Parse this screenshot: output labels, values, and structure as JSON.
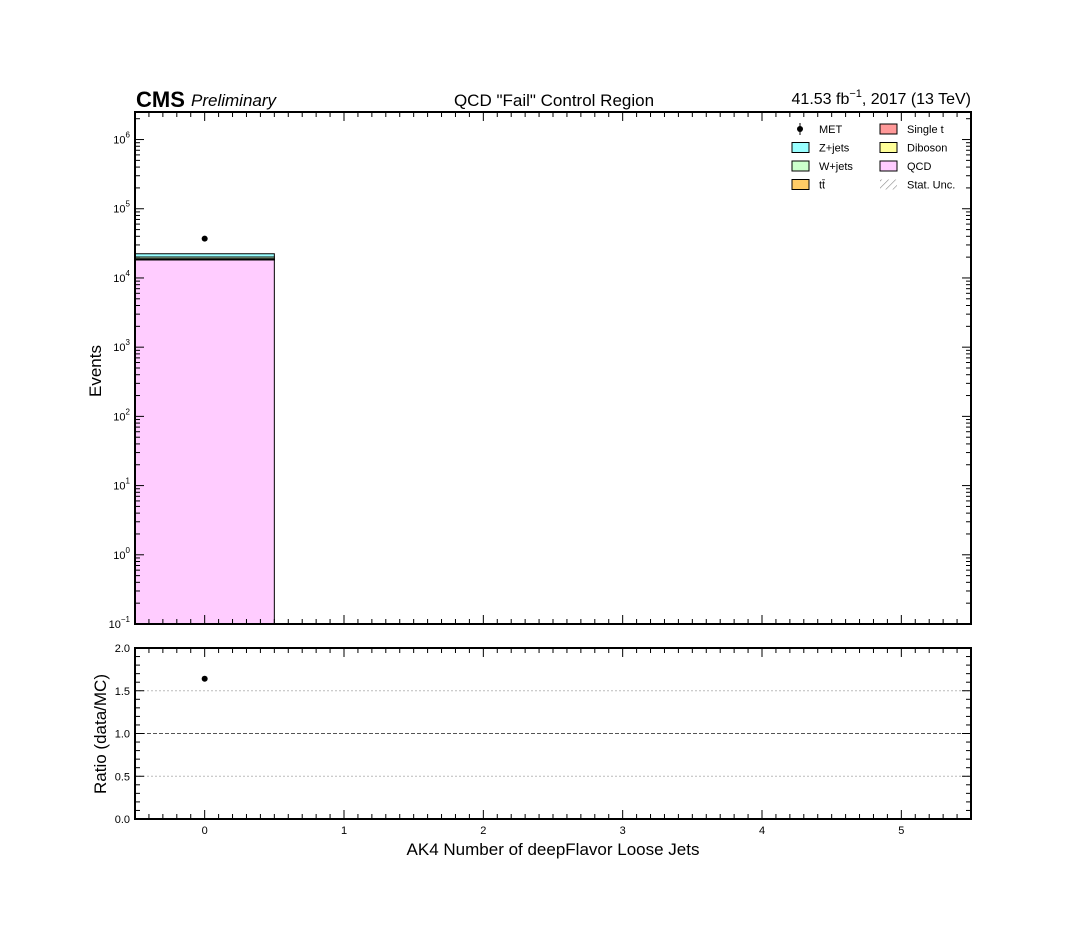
{
  "chart_data": {
    "type": "bar",
    "stacked": true,
    "header": {
      "cms": "CMS",
      "preliminary": "Preliminary",
      "title": "QCD \"Fail\" Control Region",
      "lumi": "41.53 fb",
      "lumi_exp": "−1",
      "lumi_suffix": ", 2017 (13 TeV)"
    },
    "xlabel": "AK4 Number of deepFlavor Loose Jets",
    "ylabel_main": "Events",
    "ylabel_ratio": "Ratio (data/MC)",
    "x_range": [
      -0.5,
      5.5
    ],
    "x_ticks": [
      "0",
      "1",
      "2",
      "3",
      "4",
      "5"
    ],
    "y_scale": "log",
    "y_range": [
      0.1,
      2500000
    ],
    "y_ticks": [
      {
        "base": "10",
        "exp": "−1"
      },
      {
        "base": "10",
        "exp": "0"
      },
      {
        "base": "10",
        "exp": "1"
      },
      {
        "base": "10",
        "exp": "2"
      },
      {
        "base": "10",
        "exp": "3"
      },
      {
        "base": "10",
        "exp": "4"
      },
      {
        "base": "10",
        "exp": "5"
      },
      {
        "base": "10",
        "exp": "6"
      }
    ],
    "ratio_range": [
      0.0,
      2.0
    ],
    "ratio_ticks": [
      "0.0",
      "0.5",
      "1.0",
      "1.5",
      "2.0"
    ],
    "bins": [
      0,
      1,
      2,
      3,
      4,
      5
    ],
    "series": [
      {
        "name": "QCD",
        "color": "#ffccff",
        "values": [
          18500,
          0,
          0,
          0,
          0,
          0
        ]
      },
      {
        "name": "Diboson",
        "color": "#ffff99",
        "values": [
          20,
          0,
          0,
          0,
          0,
          0
        ]
      },
      {
        "name": "Single t",
        "color": "#ff9999",
        "values": [
          50,
          0,
          0,
          0,
          0,
          0
        ]
      },
      {
        "name": "tt̄",
        "color": "#ffcc66",
        "values": [
          400,
          0,
          0,
          0,
          0,
          0
        ]
      },
      {
        "name": "W+jets",
        "color": "#ccffcc",
        "values": [
          1100,
          0,
          0,
          0,
          0,
          0
        ]
      },
      {
        "name": "Z+jets",
        "color": "#99ffff",
        "values": [
          2300,
          0,
          0,
          0,
          0,
          0
        ]
      }
    ],
    "data": {
      "name": "MET",
      "x": [
        0
      ],
      "y": [
        37000
      ]
    },
    "ratio": {
      "x": [
        0
      ],
      "y": [
        1.64
      ]
    },
    "legend": {
      "placement": "top-right",
      "entries": [
        {
          "label": "MET",
          "kind": "marker"
        },
        {
          "label": "Single t",
          "kind": "box",
          "color": "#ff9999"
        },
        {
          "label": "Z+jets",
          "kind": "box",
          "color": "#99ffff"
        },
        {
          "label": "Diboson",
          "kind": "box",
          "color": "#ffff99"
        },
        {
          "label": "W+jets",
          "kind": "box",
          "color": "#ccffcc"
        },
        {
          "label": "QCD",
          "kind": "box",
          "color": "#ffccff"
        },
        {
          "label": "tt̄",
          "kind": "box",
          "color": "#ffcc66"
        },
        {
          "label": "Stat. Unc.",
          "kind": "hatch"
        }
      ]
    },
    "grid_ratio": true
  }
}
